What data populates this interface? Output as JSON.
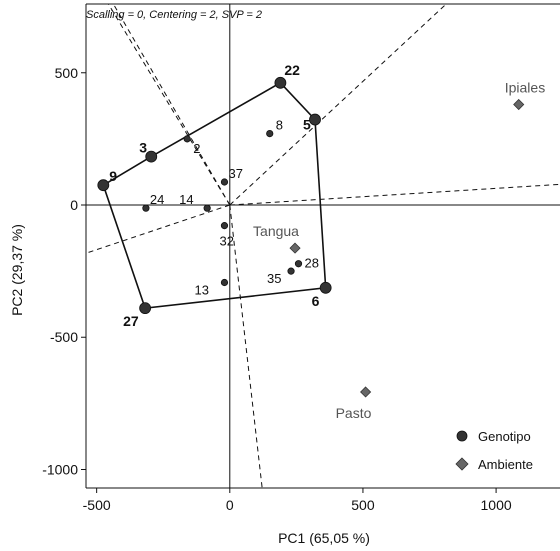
{
  "chart_data": {
    "type": "scatter",
    "title": "",
    "header_note": "Scalling = 0, Centering = 2, SVP = 2",
    "xlabel": "PC1 (65,05 %)",
    "ylabel": "PC2 (29,37 %)",
    "xlim": [
      -540,
      1240
    ],
    "ylim": [
      -1070,
      760
    ],
    "xticks": [
      -500,
      0,
      500,
      1000
    ],
    "yticks": [
      -1000,
      -500,
      0,
      500
    ],
    "xtick_labels": [
      "-500",
      "0",
      "500",
      "1000"
    ],
    "ytick_labels": [
      "-1000",
      "-500",
      "0",
      "500"
    ],
    "legend_position": "bottom-right",
    "series": [
      {
        "name": "Genotipo",
        "marker": "circle",
        "color": "#333333",
        "points": [
          {
            "label": "22",
            "x": 190,
            "y": 462,
            "vertex": true
          },
          {
            "label": "5",
            "x": 320,
            "y": 323,
            "vertex": true
          },
          {
            "label": "6",
            "x": 360,
            "y": -313,
            "vertex": true
          },
          {
            "label": "27",
            "x": -318,
            "y": -390,
            "vertex": true
          },
          {
            "label": "9",
            "x": -475,
            "y": 75,
            "vertex": true
          },
          {
            "label": "3",
            "x": -295,
            "y": 183,
            "vertex": true
          },
          {
            "label": "2",
            "x": -160,
            "y": 250,
            "vertex": false
          },
          {
            "label": "8",
            "x": 150,
            "y": 270,
            "vertex": false
          },
          {
            "label": "37",
            "x": -20,
            "y": 87,
            "vertex": false
          },
          {
            "label": "24",
            "x": -315,
            "y": -12,
            "vertex": false
          },
          {
            "label": "14",
            "x": -85,
            "y": -12,
            "vertex": false
          },
          {
            "label": "32",
            "x": -20,
            "y": -78,
            "vertex": false
          },
          {
            "label": "28",
            "x": 258,
            "y": -222,
            "vertex": false
          },
          {
            "label": "35",
            "x": 230,
            "y": -250,
            "vertex": false
          },
          {
            "label": "13",
            "x": -20,
            "y": -293,
            "vertex": false
          }
        ]
      },
      {
        "name": "Ambiente",
        "marker": "diamond",
        "color": "#666666",
        "points": [
          {
            "label": "Ipiales",
            "x": 1085,
            "y": 380
          },
          {
            "label": "Tangua",
            "x": 245,
            "y": -163
          },
          {
            "label": "Pasto",
            "x": 510,
            "y": -707
          }
        ]
      }
    ],
    "hull_order": [
      "22",
      "5",
      "6",
      "27",
      "9",
      "3"
    ]
  }
}
